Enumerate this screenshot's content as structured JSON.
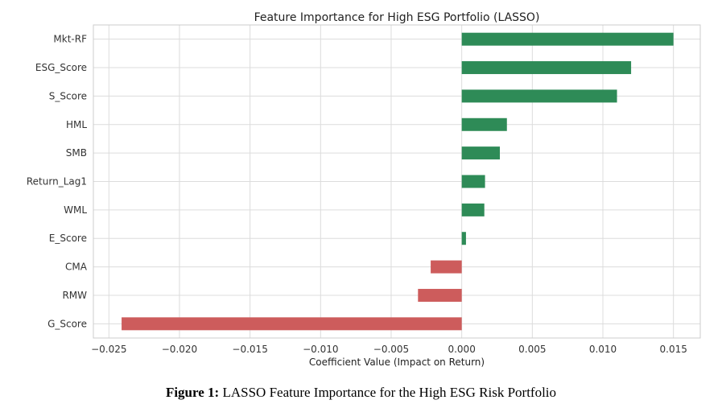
{
  "chart_data": {
    "type": "bar",
    "orientation": "horizontal",
    "title": "Feature Importance for High ESG Portfolio (LASSO)",
    "xlabel": "Coefficient Value (Impact on Return)",
    "ylabel": "",
    "categories": [
      "Mkt-RF",
      "ESG_Score",
      "S_Score",
      "HML",
      "SMB",
      "Return_Lag1",
      "WML",
      "E_Score",
      "CMA",
      "RMW",
      "G_Score"
    ],
    "values": [
      0.015,
      0.012,
      0.011,
      0.0032,
      0.0027,
      0.00165,
      0.0016,
      0.0003,
      -0.0022,
      -0.0031,
      -0.0241
    ],
    "xlim": [
      -0.0261,
      0.0169
    ],
    "xticks": [
      -0.025,
      -0.02,
      -0.015,
      -0.01,
      -0.005,
      0.0,
      0.005,
      0.01,
      0.015
    ],
    "xtick_labels": [
      "−0.025",
      "−0.020",
      "−0.015",
      "−0.010",
      "−0.005",
      "0.000",
      "0.005",
      "0.010",
      "0.015"
    ],
    "grid": true,
    "colors": {
      "positive": "#2e8b57",
      "negative": "#cd5c5c",
      "grid": "#dcdcdc",
      "frame": "#cccccc"
    }
  },
  "caption": {
    "label": "Figure 1:",
    "text": " LASSO Feature Importance for the High ESG Risk Portfolio"
  }
}
